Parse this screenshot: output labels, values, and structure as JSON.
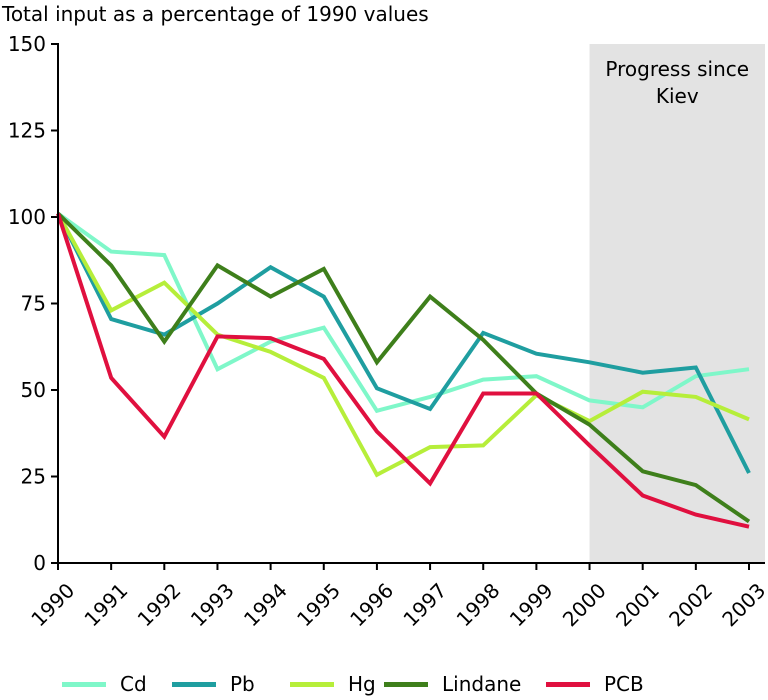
{
  "chart_data": {
    "type": "line",
    "title": "Total input as a percentage of 1990 values",
    "xlabel": "",
    "ylabel": "",
    "x": [
      "1990",
      "1991",
      "1992",
      "1993",
      "1994",
      "1995",
      "1996",
      "1997",
      "1998",
      "1999",
      "2000",
      "2001",
      "2002",
      "2003"
    ],
    "ylim": [
      0,
      150
    ],
    "yticks": [
      0,
      25,
      50,
      75,
      100,
      125,
      150
    ],
    "grid": false,
    "legend_position": "bottom",
    "annotation": {
      "text_line1": "Progress since",
      "text_line2": "Kiev",
      "x_from": "2000",
      "x_to": "2003",
      "color": "#e3e3e3"
    },
    "series": [
      {
        "name": "Cd",
        "color": "#7ff7c9",
        "values": [
          101,
          90,
          89,
          56,
          64,
          68,
          44,
          48,
          53,
          54,
          47,
          45,
          54,
          56
        ]
      },
      {
        "name": "Pb",
        "color": "#1f9ea0",
        "values": [
          101,
          70.5,
          66,
          75,
          85.5,
          77,
          50.5,
          44.5,
          66.5,
          60.5,
          58,
          55,
          56.5,
          26
        ]
      },
      {
        "name": "Hg",
        "color": "#b6ee3a",
        "values": [
          101,
          73,
          81,
          66,
          61,
          53.5,
          25.5,
          33.5,
          34,
          48.5,
          41,
          49.5,
          48,
          41.5
        ]
      },
      {
        "name": "Lindane",
        "color": "#3e7f1b",
        "values": [
          101,
          86,
          64,
          86,
          77,
          85,
          58,
          77,
          64.5,
          49,
          40,
          26.5,
          22.5,
          12
        ]
      },
      {
        "name": "PCB",
        "color": "#e0103f",
        "values": [
          101,
          53.5,
          36.5,
          65.5,
          65,
          59,
          38,
          23,
          49,
          49,
          34,
          19.5,
          14,
          10.5
        ]
      }
    ]
  }
}
